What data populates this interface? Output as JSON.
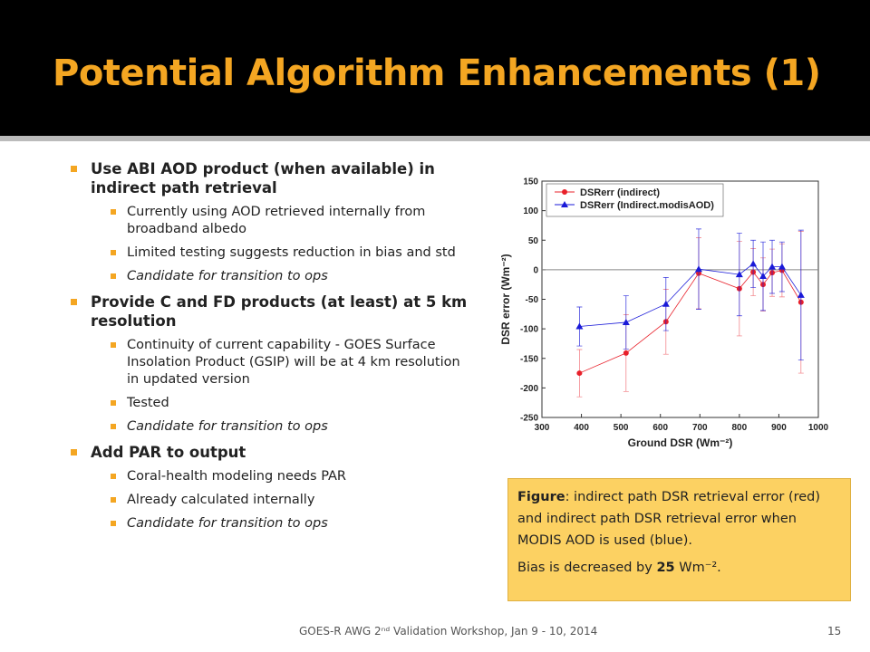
{
  "slide": {
    "title": "Potential Algorithm Enhancements (1)",
    "bullets": [
      {
        "text": "Use ABI AOD product (when available) in indirect path retrieval",
        "sub": [
          {
            "text": "Currently using AOD retrieved internally from broadband albedo",
            "italic": false
          },
          {
            "text": "Limited testing suggests reduction in bias and std",
            "italic": false
          },
          {
            "text": "Candidate for transition to ops",
            "italic": true
          }
        ]
      },
      {
        "text": "Provide C and FD products (at least) at 5 km resolution",
        "sub": [
          {
            "text": "Continuity of current capability - GOES Surface Insolation Product (GSIP) will be at 4 km resolution in updated version",
            "italic": false
          },
          {
            "text": "Tested",
            "italic": false
          },
          {
            "text": "Candidate for transition to ops",
            "italic": true
          }
        ]
      },
      {
        "text": "Add PAR to output",
        "sub": [
          {
            "text": "Coral-health modeling needs PAR",
            "italic": false
          },
          {
            "text": "Already calculated internally",
            "italic": false
          },
          {
            "text": "Candidate for transition to ops",
            "italic": true
          }
        ]
      }
    ],
    "caption": {
      "label": "Figure",
      "text": ": indirect path DSR retrieval error (red) and indirect path DSR retrieval error when MODIS AOD is used (blue).",
      "bias_pre": "Bias is decreased by ",
      "bias_num": "25",
      "bias_post": " Wm⁻²."
    },
    "footer": "GOES-R AWG 2ⁿᵈ Validation Workshop, Jan 9 - 10, 2014",
    "page": "15"
  },
  "chart_data": {
    "type": "errorbar-line",
    "xlabel": "Ground DSR (Wm⁻²)",
    "ylabel": "DSR error (Wm⁻²)",
    "x": [
      395,
      513,
      614,
      697,
      800,
      835,
      860,
      883,
      908,
      956
    ],
    "series": [
      {
        "name": "DSRerr (indirect)",
        "color": "#e8202a",
        "marker": "circle",
        "values": [
          -175,
          -141,
          -88,
          -6,
          -32,
          -4,
          -25,
          -5,
          -1,
          -55
        ],
        "errors": [
          40,
          65,
          55,
          60,
          80,
          40,
          45,
          40,
          45,
          120
        ]
      },
      {
        "name": "DSRerr (Indirect.modisAOD)",
        "color": "#1a1ad8",
        "marker": "triangle",
        "values": [
          -96,
          -89,
          -58,
          1,
          -8,
          10,
          -11,
          5,
          5,
          -43
        ],
        "errors": [
          33,
          45,
          45,
          68,
          70,
          40,
          58,
          45,
          42,
          110
        ]
      }
    ],
    "xlim": [
      300,
      1000
    ],
    "xticks": [
      300,
      400,
      500,
      600,
      700,
      800,
      900,
      1000
    ],
    "ylim": [
      -250,
      150
    ],
    "yticks": [
      -250,
      -200,
      -150,
      -100,
      -50,
      0,
      50,
      100,
      150
    ],
    "zero_line": true,
    "legend": "upper-left"
  }
}
